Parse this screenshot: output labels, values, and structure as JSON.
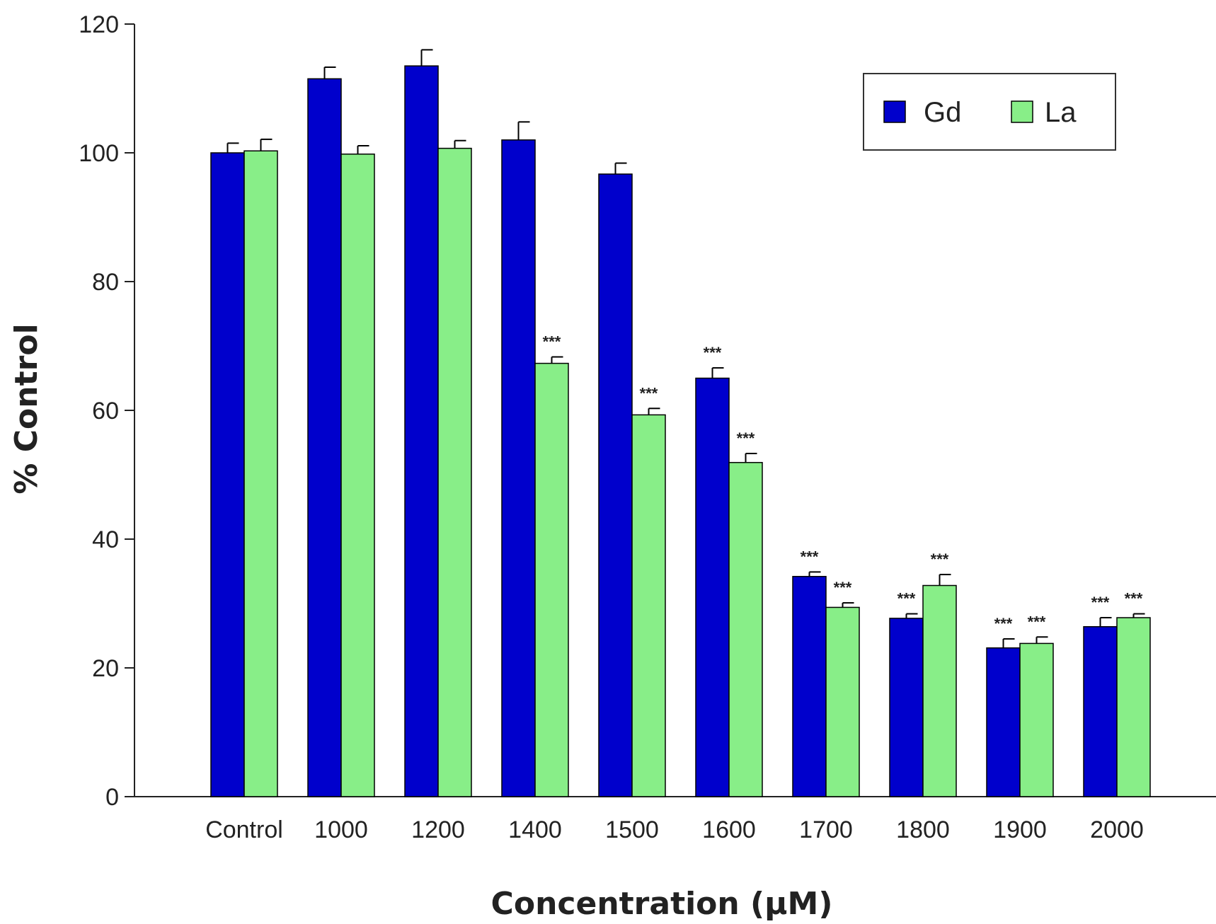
{
  "chart_data": {
    "type": "bar",
    "xlabel": "Concentration (µM)",
    "ylabel": "% Control",
    "ylim": [
      0,
      120
    ],
    "yticks": [
      0,
      20,
      40,
      60,
      80,
      100,
      120
    ],
    "categories": [
      "Control",
      "1000",
      "1200",
      "1400",
      "1500",
      "1600",
      "1700",
      "1800",
      "1900",
      "2000"
    ],
    "series": [
      {
        "name": "Gd",
        "color": "#0000cc",
        "values": [
          100,
          111.5,
          113.5,
          102,
          96.7,
          65,
          34.2,
          27.7,
          23.1,
          26.4
        ],
        "errors": [
          1.5,
          1.8,
          2.5,
          2.8,
          1.7,
          1.6,
          0.7,
          0.7,
          1.4,
          1.4
        ],
        "significance": [
          "",
          "",
          "",
          "",
          "",
          "***",
          "***",
          "***",
          "***",
          "***"
        ]
      },
      {
        "name": "La",
        "color": "#88ee88",
        "values": [
          100.3,
          99.8,
          100.7,
          67.3,
          59.3,
          51.9,
          29.4,
          32.8,
          23.8,
          27.8
        ],
        "errors": [
          1.8,
          1.3,
          1.2,
          1.0,
          1.0,
          1.4,
          0.7,
          1.7,
          1.0,
          0.6
        ],
        "significance": [
          "",
          "",
          "",
          "***",
          "***",
          "***",
          "***",
          "***",
          "***",
          "***"
        ]
      }
    ],
    "legend": {
      "position": "top-right"
    },
    "grid": false
  }
}
